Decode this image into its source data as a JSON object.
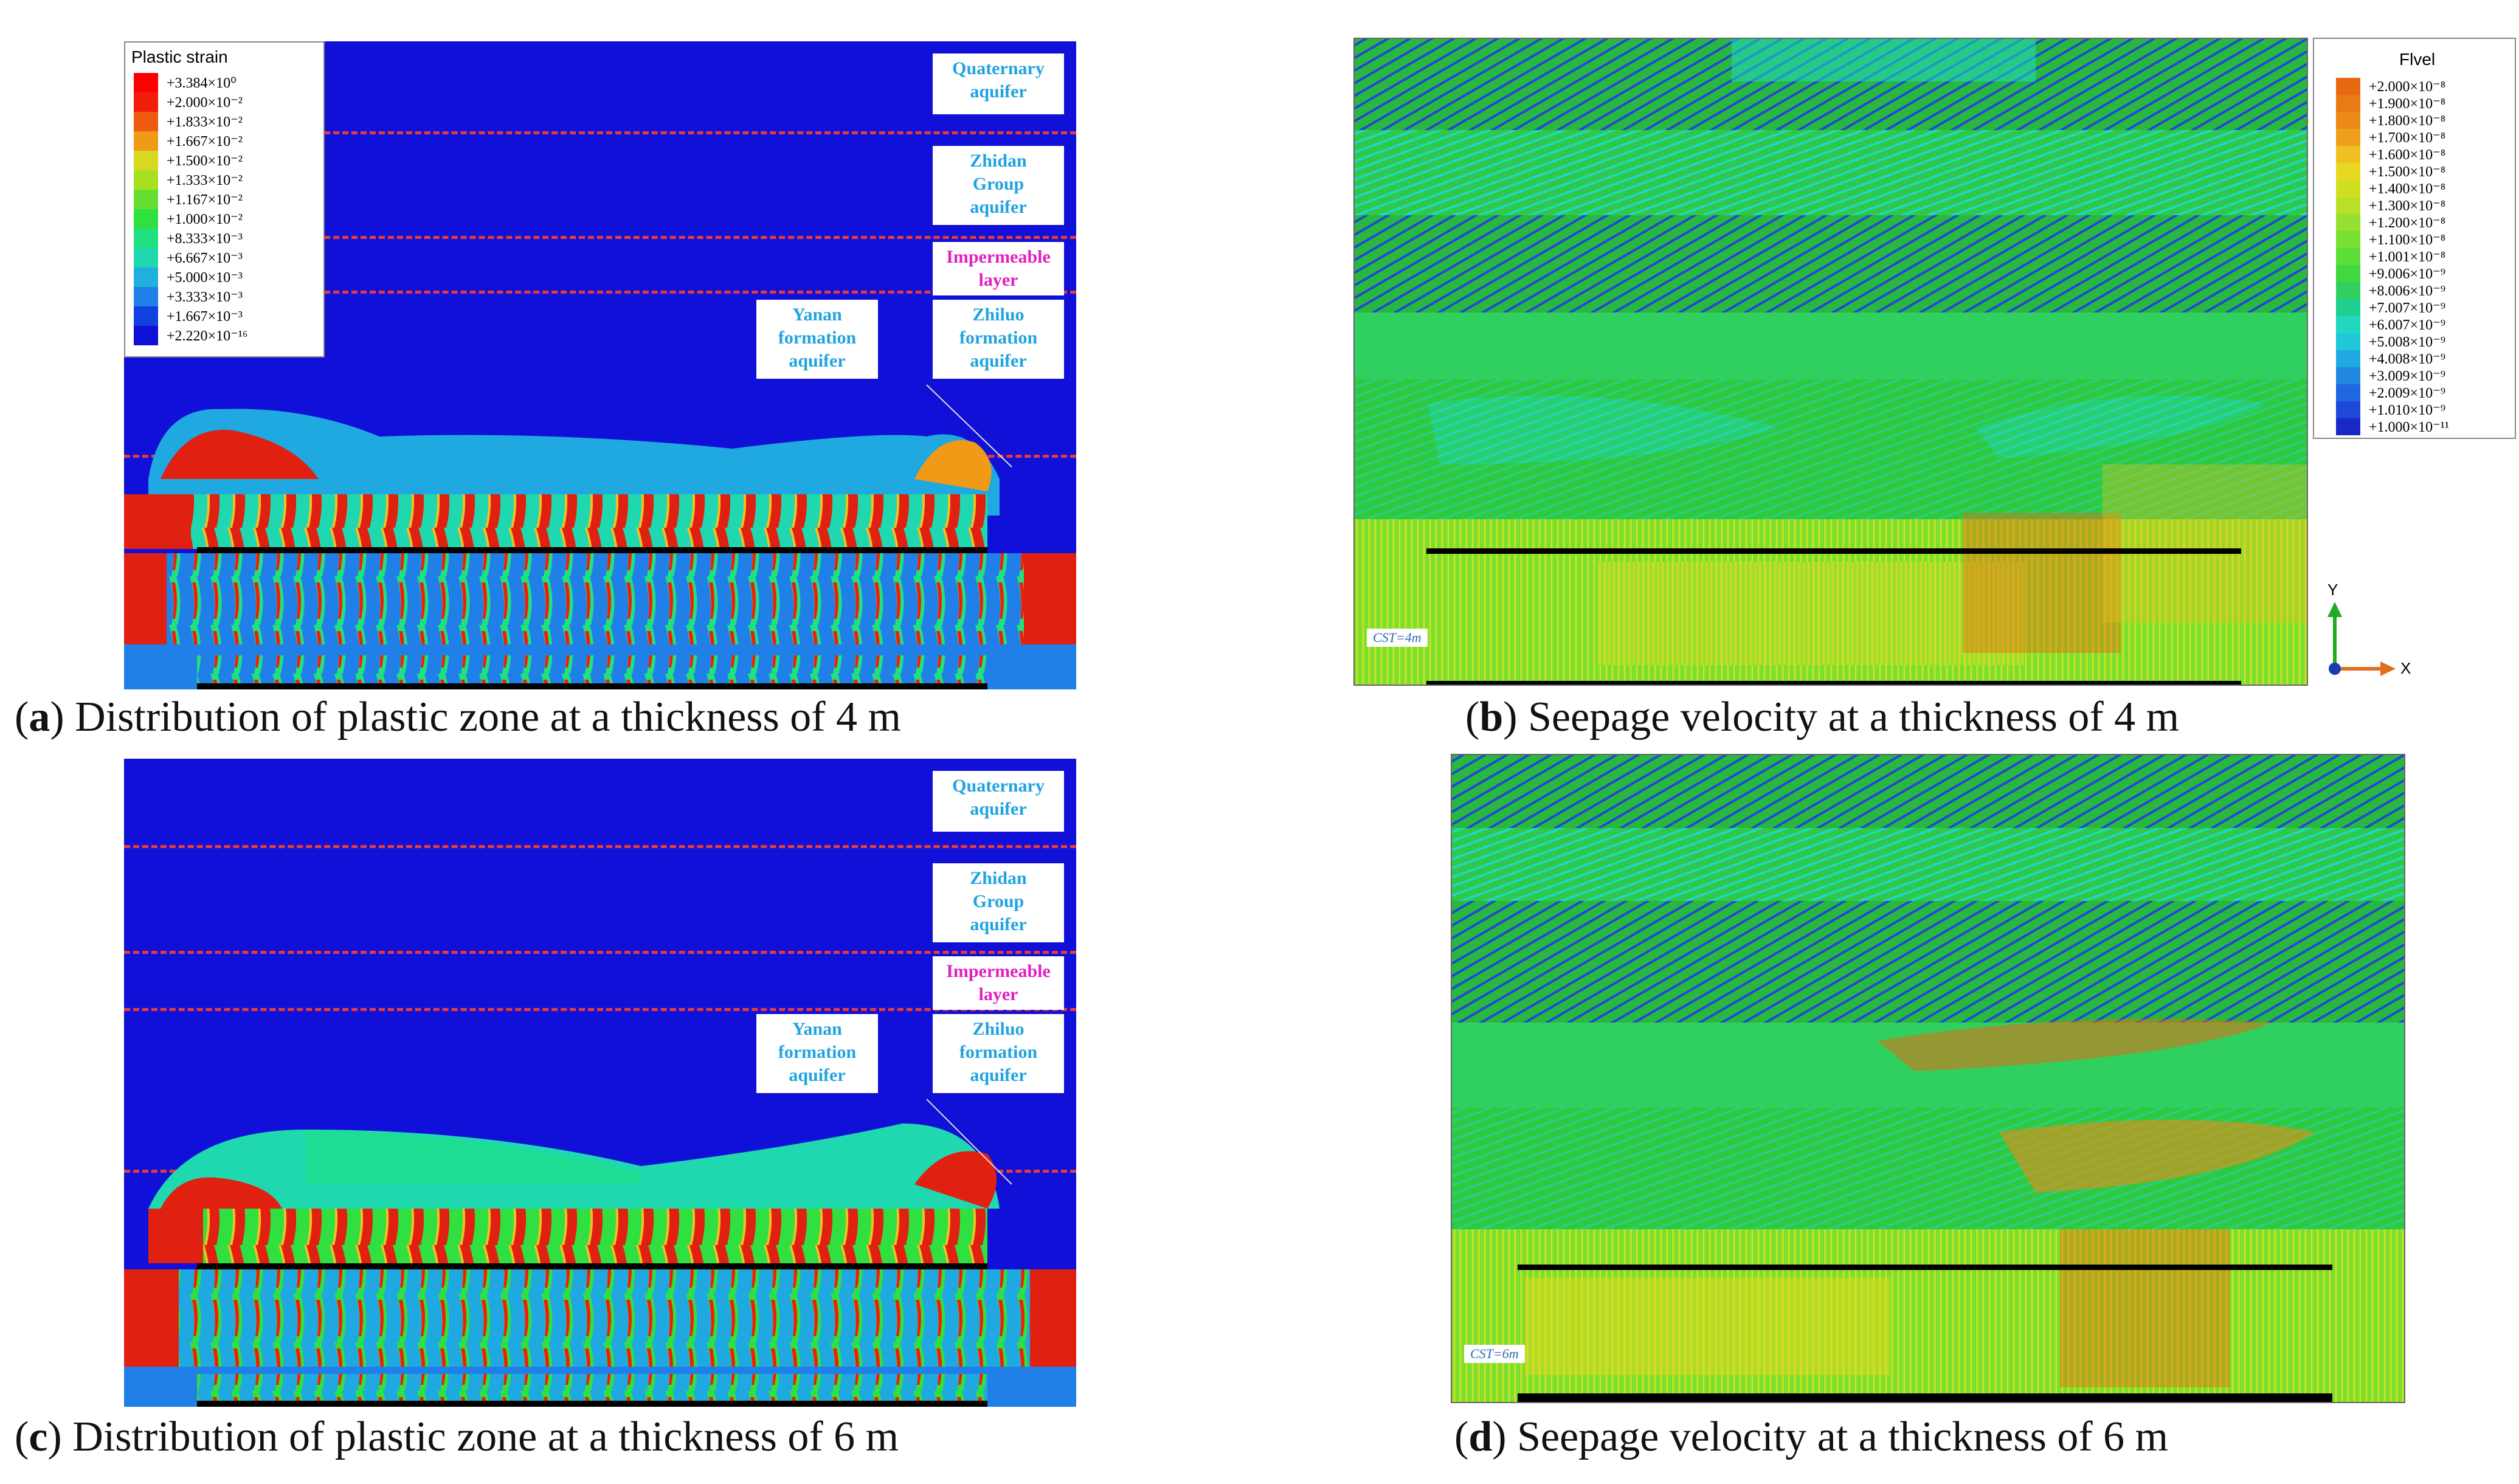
{
  "panels": {
    "a": {
      "caption_letter": "a",
      "caption_text": " Distribution of plastic zone at a thickness of 4 m",
      "legend_title": "Plastic strain",
      "legend_values": [
        "+3.384×10⁰",
        "+2.000×10⁻²",
        "+1.833×10⁻²",
        "+1.667×10⁻²",
        "+1.500×10⁻²",
        "+1.333×10⁻²",
        "+1.167×10⁻²",
        "+1.000×10⁻²",
        "+8.333×10⁻³",
        "+6.667×10⁻³",
        "+5.000×10⁻³",
        "+3.333×10⁻³",
        "+1.667×10⁻³",
        "+2.220×10⁻¹⁶"
      ]
    },
    "b": {
      "caption_letter": "b",
      "caption_text": " Seepage velocity at a thickness of 4 m",
      "tag": "CST=4m",
      "legend_title": "Flvel",
      "legend_values": [
        "+2.000×10⁻⁸",
        "+1.900×10⁻⁸",
        "+1.800×10⁻⁸",
        "+1.700×10⁻⁸",
        "+1.600×10⁻⁸",
        "+1.500×10⁻⁸",
        "+1.400×10⁻⁸",
        "+1.300×10⁻⁸",
        "+1.200×10⁻⁸",
        "+1.100×10⁻⁸",
        "+1.001×10⁻⁸",
        "+9.006×10⁻⁹",
        "+8.006×10⁻⁹",
        "+7.007×10⁻⁹",
        "+6.007×10⁻⁹",
        "+5.008×10⁻⁹",
        "+4.008×10⁻⁹",
        "+3.009×10⁻⁹",
        "+2.009×10⁻⁹",
        "+1.010×10⁻⁹",
        "+1.000×10⁻¹¹"
      ],
      "axis_y": "Y",
      "axis_x": "X"
    },
    "c": {
      "caption_letter": "c",
      "caption_text": " Distribution of plastic zone at a thickness of 6 m"
    },
    "d": {
      "caption_letter": "d",
      "caption_text": " Seepage velocity at a thickness of 6 m",
      "tag": "CST=6m"
    }
  },
  "layers": {
    "quaternary": [
      "Quaternary",
      "aquifer"
    ],
    "zhidan": [
      "Zhidan",
      "Group",
      "aquifer"
    ],
    "impermeable": [
      "Impermeable",
      "layer"
    ],
    "yanan": [
      "Yanan",
      "formation",
      "aquifer"
    ],
    "zhiluo": [
      "Zhiluo",
      "formation",
      "aquifer"
    ]
  },
  "colors": {
    "background_blue": "#1010d8",
    "plastic_scale": [
      "#ff0000",
      "#f21c0a",
      "#ee5a10",
      "#f09a18",
      "#d8d820",
      "#a8e020",
      "#66e030",
      "#30e040",
      "#20e080",
      "#20d8b0",
      "#20b0e0",
      "#2080e8",
      "#1040e0",
      "#1010d8"
    ],
    "flvel_scale": [
      "#e86a10",
      "#ea7a14",
      "#ec8a18",
      "#eea01c",
      "#f0c020",
      "#e8d820",
      "#d0e020",
      "#b8e028",
      "#98e030",
      "#78e030",
      "#5ce038",
      "#40d840",
      "#30d060",
      "#20d090",
      "#20d8c0",
      "#20c8d8",
      "#20a8e0",
      "#2088e0",
      "#2068e0",
      "#2048d8",
      "#1a28c8"
    ]
  }
}
